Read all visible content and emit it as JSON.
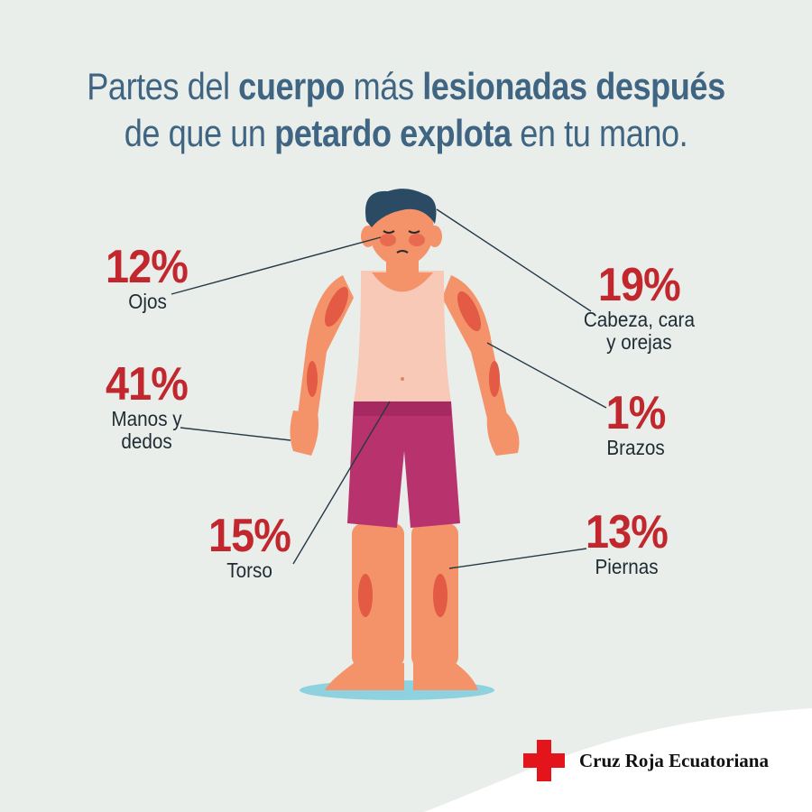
{
  "title": {
    "line1": [
      "Partes del ",
      "cuerpo",
      " más ",
      "lesionadas después"
    ],
    "line2": [
      "de que un ",
      "petardo explota",
      " en tu mano."
    ]
  },
  "stats": {
    "ojos": {
      "percent": "12%",
      "label": "Ojos"
    },
    "manos": {
      "percent": "41%",
      "label": "Manos y\ndedos"
    },
    "torso": {
      "percent": "15%",
      "label": "Torso"
    },
    "cabeza": {
      "percent": "19%",
      "label": "Cabeza, cara\ny orejas"
    },
    "brazos": {
      "percent": "1%",
      "label": "Brazos"
    },
    "piernas": {
      "percent": "13%",
      "label": "Piernas"
    }
  },
  "brand": {
    "name": "Cruz Roja Ecuatoriana"
  },
  "colors": {
    "background": "#e9eeeb",
    "title": "#3f6582",
    "percent": "#c1272d",
    "skin": "#f4936a",
    "injury": "#e35a45",
    "tank_top": "#f8c9b6",
    "shorts": "#b8336e",
    "hair": "#2b4a63",
    "red_cross": "#e3151a"
  }
}
